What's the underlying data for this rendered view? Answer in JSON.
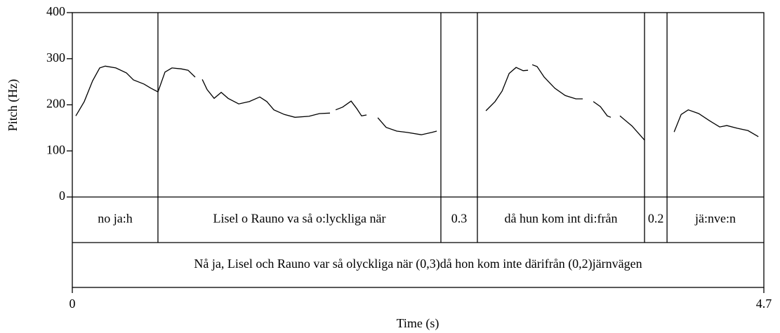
{
  "chart_data": {
    "type": "line",
    "xlabel": "Time (s)",
    "ylabel": "Pitch (Hz)",
    "xlim": [
      0,
      4.7
    ],
    "xticks": [
      0,
      4.7
    ],
    "ylim": [
      0,
      400
    ],
    "yticks": [
      0,
      100,
      200,
      300,
      400
    ],
    "series": [
      {
        "color": "#000000",
        "x": [
          0.024,
          0.081,
          0.138,
          0.186,
          0.224,
          0.296,
          0.368,
          0.415,
          0.487,
          0.534,
          0.582,
          0.63,
          0.677,
          0.739,
          0.787,
          0.835,
          null,
          0.883,
          0.916,
          0.964,
          1.012,
          1.059,
          1.131,
          1.203,
          1.274,
          1.322,
          1.37,
          1.441,
          1.513,
          1.608,
          1.68,
          1.751,
          null,
          1.79,
          1.837,
          1.895,
          1.933,
          1.966,
          2.0,
          null,
          2.076,
          2.133,
          2.205,
          2.276,
          2.372,
          2.443,
          2.477,
          null,
          2.811,
          2.873,
          2.921,
          2.969,
          3.016,
          3.064,
          3.097,
          null,
          3.126,
          3.159,
          3.207,
          3.279,
          3.35,
          3.422,
          3.469,
          null,
          3.541,
          3.589,
          3.636,
          3.66,
          null,
          3.722,
          3.804,
          3.89,
          null,
          4.09,
          4.138,
          4.186,
          4.257,
          4.329,
          4.4,
          4.448,
          4.52,
          4.592,
          4.663
        ],
        "values": [
          176,
          207,
          252,
          280,
          284,
          280,
          269,
          254,
          245,
          236,
          228,
          271,
          280,
          278,
          275,
          260,
          null,
          255,
          233,
          214,
          227,
          214,
          202,
          207,
          217,
          207,
          189,
          179,
          173,
          175,
          181,
          182,
          null,
          189,
          195,
          208,
          192,
          176,
          178,
          null,
          172,
          151,
          143,
          140,
          135,
          140,
          143,
          null,
          187,
          207,
          230,
          268,
          281,
          274,
          275,
          null,
          287,
          283,
          260,
          236,
          220,
          213,
          213,
          null,
          207,
          196,
          176,
          173,
          null,
          176,
          154,
          123,
          null,
          141,
          179,
          189,
          181,
          166,
          152,
          155,
          149,
          144,
          131
        ]
      }
    ],
    "tiers": [
      {
        "intervals": [
          {
            "start": 0,
            "end": 0.582,
            "label": "no ja:h"
          },
          {
            "start": 0.582,
            "end": 2.505,
            "label": "Lisel o Rauno va så o:lyckliga när"
          },
          {
            "start": 2.505,
            "end": 2.753,
            "label": "0.3"
          },
          {
            "start": 2.753,
            "end": 3.889,
            "label": "då hun kom int di:från"
          },
          {
            "start": 3.889,
            "end": 4.042,
            "label": "0.2"
          },
          {
            "start": 4.042,
            "end": 4.7,
            "label": "jä:nve:n"
          }
        ]
      },
      {
        "intervals": [
          {
            "start": 0,
            "end": 4.7,
            "label": "Nå ja, Lisel och Rauno var så olyckliga när (0,3)då hon kom inte därifrån (0,2)järnvägen"
          }
        ]
      }
    ]
  }
}
